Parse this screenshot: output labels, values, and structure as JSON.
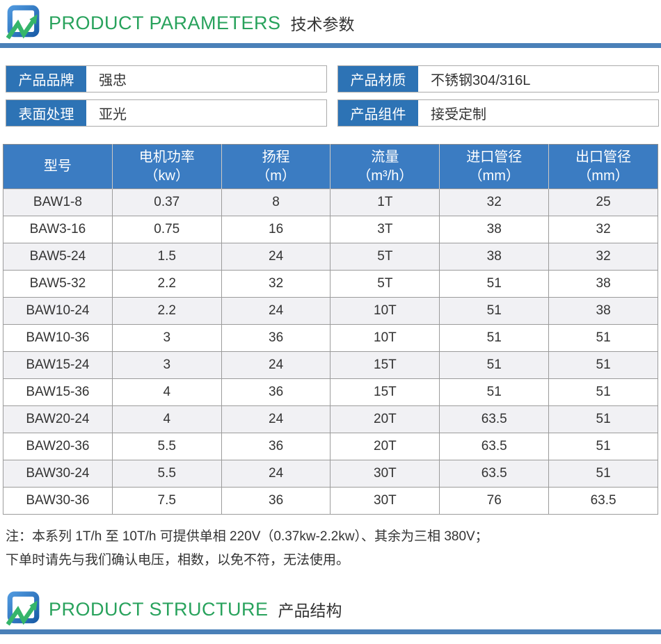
{
  "colors": {
    "accent_green": "#28a25c",
    "divider_blue": "#4a80b8",
    "label_blue": "#2d73b5",
    "table_header_blue": "#3b7cc2",
    "row_alt_bg": "#f1f1f4",
    "text": "#333333"
  },
  "sections": {
    "parameters": {
      "title_en": "PRODUCT PARAMETERS",
      "title_zh": "技术参数"
    },
    "structure": {
      "title_en": "PRODUCT STRUCTURE",
      "title_zh": "产品结构"
    }
  },
  "info_boxes": [
    {
      "label": "产品品牌",
      "value": "强忠"
    },
    {
      "label": "产品材质",
      "value": "不锈钢304/316L"
    },
    {
      "label": "表面处理",
      "value": "亚光"
    },
    {
      "label": "产品组件",
      "value": "接受定制"
    }
  ],
  "table": {
    "headers": [
      {
        "line1": "型号",
        "line2": ""
      },
      {
        "line1": "电机功率",
        "line2": "（kw）"
      },
      {
        "line1": "扬程",
        "line2": "（m）"
      },
      {
        "line1": "流量",
        "line2": "（m³/h）"
      },
      {
        "line1": "进口管径",
        "line2": "（mm）"
      },
      {
        "line1": "出口管径",
        "line2": "（mm）"
      }
    ],
    "rows": [
      [
        "BAW1-8",
        "0.37",
        "8",
        "1T",
        "32",
        "25"
      ],
      [
        "BAW3-16",
        "0.75",
        "16",
        "3T",
        "38",
        "32"
      ],
      [
        "BAW5-24",
        "1.5",
        "24",
        "5T",
        "38",
        "32"
      ],
      [
        "BAW5-32",
        "2.2",
        "32",
        "5T",
        "51",
        "38"
      ],
      [
        "BAW10-24",
        "2.2",
        "24",
        "10T",
        "51",
        "38"
      ],
      [
        "BAW10-36",
        "3",
        "36",
        "10T",
        "51",
        "51"
      ],
      [
        "BAW15-24",
        "3",
        "24",
        "15T",
        "51",
        "51"
      ],
      [
        "BAW15-36",
        "4",
        "36",
        "15T",
        "51",
        "51"
      ],
      [
        "BAW20-24",
        "4",
        "24",
        "20T",
        "63.5",
        "51"
      ],
      [
        "BAW20-36",
        "5.5",
        "36",
        "20T",
        "63.5",
        "51"
      ],
      [
        "BAW30-24",
        "5.5",
        "24",
        "30T",
        "63.5",
        "51"
      ],
      [
        "BAW30-36",
        "7.5",
        "36",
        "30T",
        "76",
        "63.5"
      ]
    ]
  },
  "notes": [
    "注：本系列 1T/h 至 10T/h 可提供单相 220V（0.37kw-2.2kw）、其余为三相 380V；",
    "下单时请先与我们确认电压，相数，以免不符，无法使用。"
  ]
}
